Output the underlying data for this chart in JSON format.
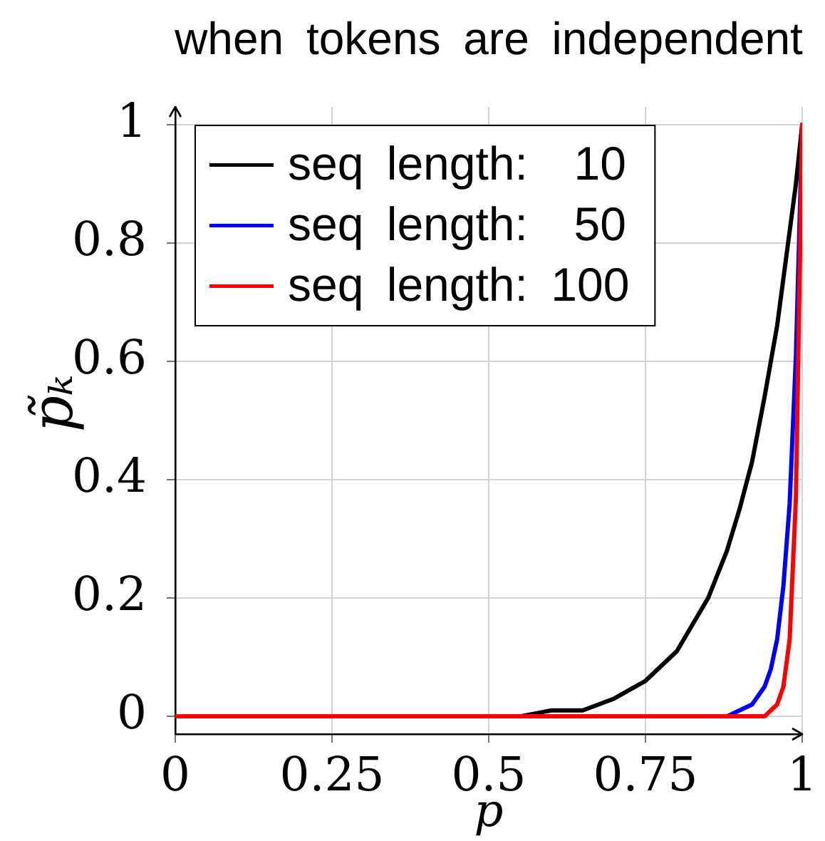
{
  "chart_data": {
    "type": "line",
    "title": "when tokens are independent",
    "xlabel": "p",
    "ylabel": "p̃ₖ",
    "x": [
      0,
      0.1,
      0.2,
      0.3,
      0.4,
      0.5,
      0.55,
      0.6,
      0.65,
      0.7,
      0.75,
      0.8,
      0.85,
      0.88,
      0.9,
      0.92,
      0.94,
      0.95,
      0.96,
      0.97,
      0.98,
      0.99,
      1
    ],
    "series": [
      {
        "name": "seq length:  10",
        "color": "#000000",
        "values": [
          null,
          null,
          null,
          null,
          null,
          0,
          0,
          0.01,
          0.01,
          0.03,
          0.06,
          0.11,
          0.2,
          0.28,
          0.35,
          0.43,
          0.54,
          0.6,
          0.66,
          0.74,
          0.82,
          0.9,
          1
        ]
      },
      {
        "name": "seq length:  50",
        "color": "#0000ff",
        "values": [
          null,
          null,
          null,
          null,
          null,
          null,
          null,
          null,
          null,
          null,
          null,
          null,
          null,
          0,
          0.01,
          0.02,
          0.05,
          0.08,
          0.13,
          0.22,
          0.36,
          0.61,
          1
        ]
      },
      {
        "name": "seq length: 100",
        "color": "#ff0000",
        "values": [
          0,
          0,
          0,
          0,
          0,
          0,
          0,
          0,
          0,
          0,
          0,
          0,
          0,
          0,
          0,
          0,
          0,
          0.01,
          0.02,
          0.05,
          0.13,
          0.37,
          1
        ]
      }
    ],
    "xlim": [
      0,
      1
    ],
    "ylim": [
      -0.03,
      1.03
    ],
    "xticks": [
      0,
      0.25,
      0.5,
      0.75,
      1
    ],
    "yticks": [
      0,
      0.2,
      0.4,
      0.6,
      0.8,
      1
    ],
    "grid": true,
    "legend": "top left",
    "marker": "none"
  }
}
